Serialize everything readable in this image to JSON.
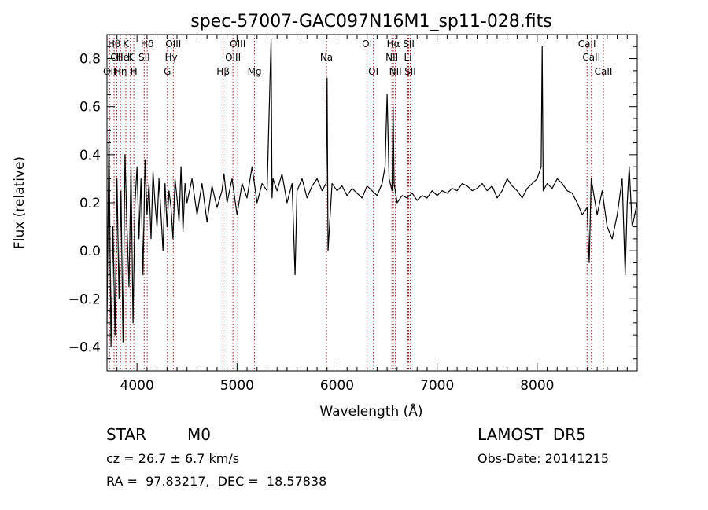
{
  "chart_data": {
    "type": "line",
    "title": "spec-57007-GAC097N16M1_sp11-028.fits",
    "xlabel": "Wavelength (Å)",
    "ylabel": "Flux (relative)",
    "xlim": [
      3700,
      9000
    ],
    "ylim": [
      -0.5,
      0.9
    ],
    "xticks": [
      4000,
      5000,
      6000,
      7000,
      8000
    ],
    "yticks": [
      -0.4,
      -0.2,
      0.0,
      0.2,
      0.4,
      0.6,
      0.8
    ],
    "xtick_labels": [
      "4000",
      "5000",
      "6000",
      "7000",
      "8000"
    ],
    "ytick_labels": [
      "−0.4",
      "−0.2",
      "0.0",
      "0.2",
      "0.4",
      "0.6",
      "0.8"
    ],
    "line_color": "#000000",
    "marker_color": "#8b1a1a",
    "series": [
      {
        "x": [
          3700,
          3720,
          3740,
          3760,
          3780,
          3800,
          3820,
          3840,
          3860,
          3880,
          3900,
          3920,
          3940,
          3960,
          3980,
          4000,
          4020,
          4040,
          4060,
          4080,
          4100,
          4120,
          4140,
          4160,
          4180,
          4200,
          4220,
          4240,
          4260,
          4280,
          4300,
          4320,
          4340,
          4360,
          4380,
          4400,
          4420,
          4440,
          4460,
          4480,
          4500,
          4550,
          4600,
          4650,
          4700,
          4750,
          4800,
          4850,
          4870,
          4900,
          4950,
          5000,
          5050,
          5100,
          5150,
          5200,
          5250,
          5300,
          5340,
          5350,
          5360,
          5400,
          5450,
          5500,
          5550,
          5580,
          5600,
          5650,
          5700,
          5750,
          5800,
          5850,
          5890,
          5900,
          5910,
          5950,
          6000,
          6050,
          6100,
          6150,
          6200,
          6250,
          6300,
          6350,
          6400,
          6450,
          6480,
          6500,
          6520,
          6550,
          6560,
          6570,
          6600,
          6650,
          6700,
          6750,
          6800,
          6850,
          6900,
          6950,
          7000,
          7050,
          7100,
          7150,
          7200,
          7250,
          7300,
          7350,
          7400,
          7450,
          7500,
          7550,
          7600,
          7650,
          7700,
          7750,
          7800,
          7850,
          7900,
          7950,
          8000,
          8040,
          8050,
          8060,
          8100,
          8150,
          8200,
          8250,
          8300,
          8350,
          8400,
          8450,
          8500,
          8520,
          8540,
          8560,
          8600,
          8650,
          8700,
          8750,
          8800,
          8850,
          8880,
          8900,
          8920,
          8950,
          9000
        ],
        "y": [
          -0.3,
          0.5,
          -0.4,
          0.1,
          -0.35,
          0.3,
          -0.2,
          0.25,
          -0.38,
          0.4,
          0.1,
          -0.15,
          0.35,
          -0.3,
          0.2,
          0.35,
          0.05,
          0.3,
          -0.1,
          0.38,
          0.15,
          0.28,
          0.05,
          0.33,
          0.2,
          0.1,
          0.3,
          0.15,
          0.0,
          0.28,
          0.1,
          0.25,
          0.18,
          0.05,
          0.3,
          0.22,
          0.12,
          0.35,
          0.08,
          0.28,
          0.2,
          0.3,
          0.15,
          0.28,
          0.12,
          0.27,
          0.18,
          0.25,
          0.32,
          0.2,
          0.3,
          0.15,
          0.28,
          0.22,
          0.35,
          0.2,
          0.28,
          0.25,
          0.88,
          0.22,
          0.3,
          0.25,
          0.32,
          0.2,
          0.28,
          -0.1,
          0.25,
          0.3,
          0.22,
          0.27,
          0.3,
          0.25,
          0.28,
          0.72,
          0.0,
          0.28,
          0.25,
          0.27,
          0.23,
          0.26,
          0.24,
          0.22,
          0.27,
          0.25,
          0.23,
          0.28,
          0.35,
          0.65,
          0.3,
          0.25,
          0.6,
          0.28,
          0.2,
          0.23,
          0.22,
          0.24,
          0.21,
          0.23,
          0.22,
          0.25,
          0.23,
          0.25,
          0.24,
          0.26,
          0.25,
          0.28,
          0.27,
          0.25,
          0.26,
          0.28,
          0.25,
          0.27,
          0.22,
          0.25,
          0.3,
          0.27,
          0.25,
          0.22,
          0.26,
          0.28,
          0.3,
          0.35,
          0.85,
          0.25,
          0.28,
          0.26,
          0.3,
          0.28,
          0.25,
          0.24,
          0.2,
          0.15,
          0.18,
          -0.05,
          0.3,
          0.25,
          0.15,
          0.25,
          0.1,
          0.05,
          0.15,
          0.3,
          -0.1,
          0.2,
          0.35,
          0.1,
          0.2
        ]
      }
    ],
    "line_markers": [
      {
        "w": 3726,
        "row": 2,
        "label": "OII"
      },
      {
        "w": 3771,
        "row": 0,
        "label": "Hθ"
      },
      {
        "w": 3798,
        "row": 1,
        "label": "OII"
      },
      {
        "w": 3835,
        "row": 2,
        "label": "Hη"
      },
      {
        "w": 3870,
        "row": 1,
        "label": "HeI"
      },
      {
        "w": 3889,
        "row": 0,
        "label": "K"
      },
      {
        "w": 3934,
        "row": 1,
        "label": "K"
      },
      {
        "w": 3968,
        "row": 2,
        "label": "H"
      },
      {
        "w": 4072,
        "row": 1,
        "label": "SII"
      },
      {
        "w": 4102,
        "row": 0,
        "label": "Hδ"
      },
      {
        "w": 4304,
        "row": 2,
        "label": "G"
      },
      {
        "w": 4341,
        "row": 1,
        "label": "Hγ"
      },
      {
        "w": 4363,
        "row": 0,
        "label": "OIII"
      },
      {
        "w": 4861,
        "row": 2,
        "label": "Hβ"
      },
      {
        "w": 4959,
        "row": 1,
        "label": "OIII"
      },
      {
        "w": 5007,
        "row": 0,
        "label": "OIII"
      },
      {
        "w": 5175,
        "row": 2,
        "label": "Mg"
      },
      {
        "w": 5894,
        "row": 1,
        "label": "Na"
      },
      {
        "w": 6300,
        "row": 0,
        "label": "OI"
      },
      {
        "w": 6363,
        "row": 2,
        "label": "OI"
      },
      {
        "w": 6548,
        "row": 1,
        "label": "NII"
      },
      {
        "w": 6563,
        "row": 0,
        "label": "Hα"
      },
      {
        "w": 6583,
        "row": 2,
        "label": "NII"
      },
      {
        "w": 6708,
        "row": 1,
        "label": "Li"
      },
      {
        "w": 6716,
        "row": 0,
        "label": "SII"
      },
      {
        "w": 6731,
        "row": 2,
        "label": "SII"
      },
      {
        "w": 8498,
        "row": 0,
        "label": "CaII"
      },
      {
        "w": 8542,
        "row": 1,
        "label": "CaII"
      },
      {
        "w": 8662,
        "row": 2,
        "label": "CaII"
      }
    ]
  },
  "info": {
    "class_label": "STAR",
    "subclass": "M0",
    "survey": "LAMOST  DR5",
    "cz": "cz = 26.7 ± 6.7 km/s",
    "obs_date": "Obs-Date: 20141215",
    "coords": "RA =  97.83217,  DEC =  18.57838"
  }
}
